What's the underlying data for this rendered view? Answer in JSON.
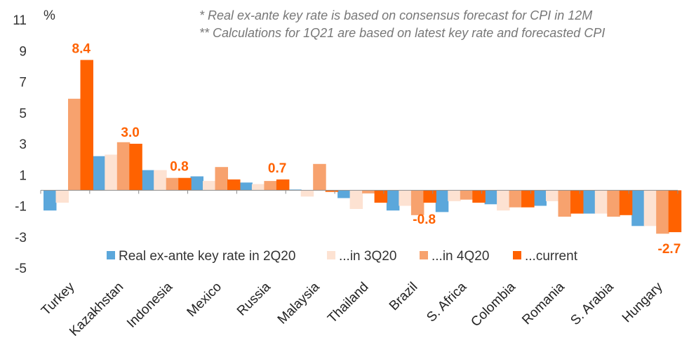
{
  "chart_data": {
    "type": "bar",
    "unit_label": "%",
    "notes": [
      "* Real ex-ante key rate is based on consensus forecast for CPI in 12M",
      "** Calculations for 1Q21 are based on latest key rate and forecasted CPI"
    ],
    "categories": [
      "Turkey",
      "Kazakhstan",
      "Indonesia",
      "Mexico",
      "Russia",
      "Malaysia",
      "Thailand",
      "Brazil",
      "S. Africa",
      "Colombia",
      "Romania",
      "S. Arabia",
      "Hungary"
    ],
    "series": [
      {
        "name": "Real ex-ante key rate in 2Q20",
        "color": "#5BA7DB",
        "values": [
          -1.3,
          2.2,
          1.3,
          0.9,
          0.5,
          0.05,
          -0.5,
          -1.3,
          -1.4,
          -0.9,
          -1.0,
          -1.5,
          -2.3
        ]
      },
      {
        "name": "...in 3Q20",
        "color": "#FDE2D2",
        "values": [
          -0.8,
          2.3,
          1.3,
          0.6,
          0.4,
          -0.4,
          -1.2,
          -1.0,
          -0.7,
          -1.3,
          -0.7,
          -1.5,
          -2.3
        ]
      },
      {
        "name": "...in 4Q20",
        "color": "#F7A26E",
        "values": [
          5.9,
          3.1,
          0.8,
          1.5,
          0.6,
          1.7,
          -0.2,
          -1.6,
          -0.6,
          -1.1,
          -1.7,
          -1.7,
          -2.8
        ]
      },
      {
        "name": "...current",
        "color": "#FF6200",
        "values": [
          8.4,
          3.0,
          0.8,
          0.7,
          0.7,
          -0.1,
          -0.8,
          -0.8,
          -0.8,
          -1.1,
          -1.5,
          -1.6,
          -2.7
        ]
      }
    ],
    "data_labels": [
      {
        "category": "Turkey",
        "series": "...current",
        "text": "8.4"
      },
      {
        "category": "Kazakhstan",
        "series": "...current",
        "text": "3.0"
      },
      {
        "category": "Indonesia",
        "series": "...current",
        "text": "0.8"
      },
      {
        "category": "Russia",
        "series": "...current",
        "text": "0.7"
      },
      {
        "category": "Brazil",
        "series": "...current",
        "text": "-0.8"
      },
      {
        "category": "Hungary",
        "series": "...current",
        "text": "-2.7"
      }
    ],
    "yticks": [
      11,
      9,
      7,
      5,
      3,
      1,
      -1,
      -3,
      -5
    ],
    "ylim": [
      -5,
      11
    ],
    "grid": false,
    "legend_position": "bottom-center"
  }
}
